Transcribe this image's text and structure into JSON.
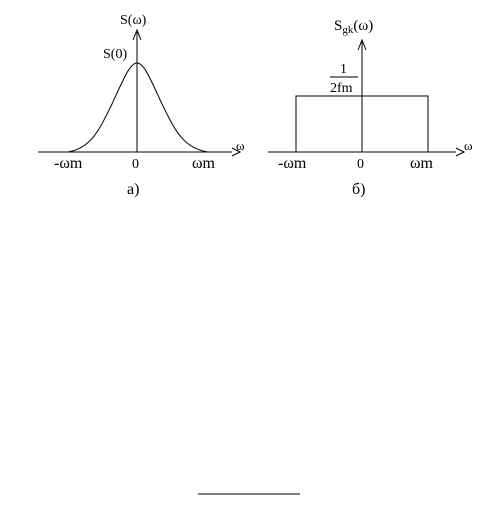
{
  "panel_a": {
    "y_label": "S(ω)",
    "peak_label": "S(0)",
    "x_axis_symbol": "ω",
    "tick_left": "-ωm",
    "tick_center": "0",
    "tick_right": "ωm",
    "caption": "а)"
  },
  "panel_b": {
    "y_label_main": "S",
    "y_label_sub": "gk",
    "y_label_arg": "(ω)",
    "level_numerator": "1",
    "level_denominator": "2fm",
    "x_axis_symbol": "ω",
    "tick_left": "-ωm",
    "tick_center": "0",
    "tick_right": "ωm",
    "caption": "б)"
  }
}
